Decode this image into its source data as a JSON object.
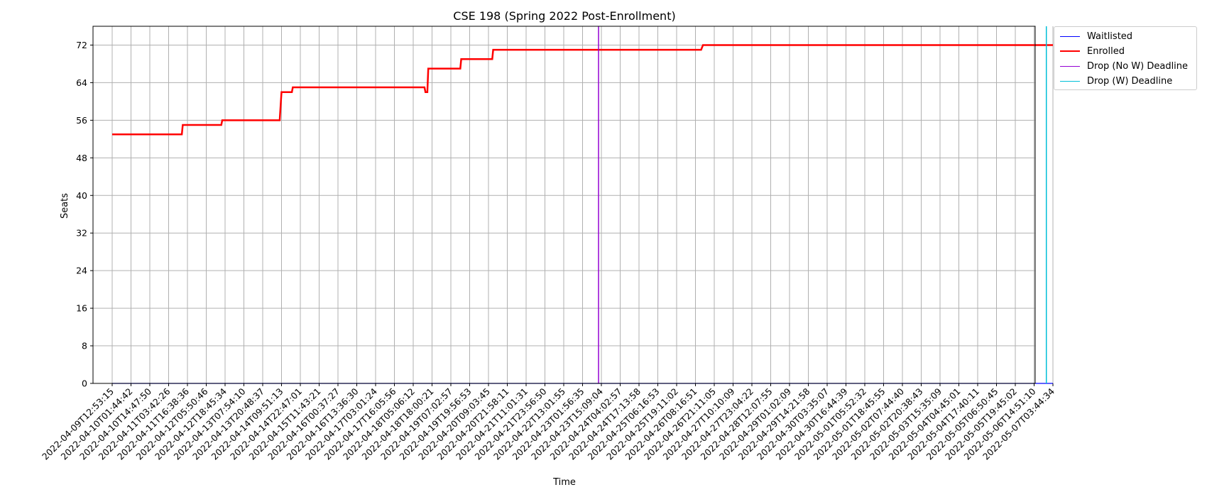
{
  "chart_data": {
    "type": "line",
    "title": "CSE 198 (Spring 2022 Post-Enrollment)",
    "xlabel": "Time",
    "ylabel": "Seats",
    "ylim": [
      0,
      76
    ],
    "yticks": [
      0,
      8,
      16,
      24,
      32,
      40,
      48,
      56,
      64,
      72
    ],
    "grid": true,
    "legend_position": "outside-top-right",
    "x_ticks": [
      "2022-04-09T12:53:15",
      "2022-04-10T01:44:42",
      "2022-04-10T14:47:50",
      "2022-04-11T03:42:26",
      "2022-04-11T16:38:36",
      "2022-04-12T05:50:46",
      "2022-04-12T18:45:34",
      "2022-04-13T07:54:10",
      "2022-04-13T20:48:37",
      "2022-04-14T09:51:13",
      "2022-04-14T22:47:01",
      "2022-04-15T11:43:21",
      "2022-04-16T00:37:27",
      "2022-04-16T13:36:30",
      "2022-04-17T03:01:24",
      "2022-04-17T16:05:56",
      "2022-04-18T05:06:12",
      "2022-04-18T18:00:21",
      "2022-04-19T07:02:57",
      "2022-04-19T19:56:53",
      "2022-04-20T09:03:45",
      "2022-04-20T21:58:11",
      "2022-04-21T11:01:31",
      "2022-04-21T23:56:50",
      "2022-04-22T13:01:55",
      "2022-04-23T01:56:35",
      "2022-04-23T15:09:04",
      "2022-04-24T04:02:57",
      "2022-04-24T17:13:58",
      "2022-04-25T06:16:53",
      "2022-04-25T19:11:02",
      "2022-04-26T08:16:51",
      "2022-04-26T21:11:05",
      "2022-04-27T10:10:09",
      "2022-04-27T23:04:22",
      "2022-04-28T12:07:55",
      "2022-04-29T01:02:09",
      "2022-04-29T14:21:58",
      "2022-04-30T03:35:07",
      "2022-04-30T16:44:39",
      "2022-05-01T05:52:32",
      "2022-05-01T18:45:55",
      "2022-05-02T07:44:40",
      "2022-05-02T20:38:43",
      "2022-05-03T15:35:09",
      "2022-05-04T04:45:01",
      "2022-05-04T17:40:11",
      "2022-05-05T06:50:45",
      "2022-05-05T19:45:02",
      "2022-05-06T14:51:10",
      "2022-05-07T03:44:34"
    ],
    "series": [
      {
        "name": "Waitlisted",
        "color": "#0000ff",
        "points": [
          [
            0,
            0
          ],
          [
            50,
            0
          ]
        ]
      },
      {
        "name": "Enrolled",
        "color": "#ff0000",
        "points": [
          [
            0,
            53
          ],
          [
            3.7,
            53
          ],
          [
            3.75,
            55
          ],
          [
            5.8,
            55
          ],
          [
            5.85,
            56
          ],
          [
            8.9,
            56
          ],
          [
            9.0,
            62
          ],
          [
            9.55,
            62
          ],
          [
            9.6,
            63
          ],
          [
            16.6,
            63
          ],
          [
            16.65,
            62
          ],
          [
            16.75,
            62
          ],
          [
            16.8,
            67
          ],
          [
            18.5,
            67
          ],
          [
            18.55,
            69
          ],
          [
            20.2,
            69
          ],
          [
            20.25,
            71
          ],
          [
            31.3,
            71
          ],
          [
            31.4,
            72
          ],
          [
            50,
            72
          ]
        ]
      }
    ],
    "vlines": [
      {
        "name": "Drop (No W) Deadline",
        "color": "#9400d3",
        "x": 25.85
      },
      {
        "name": "Drop (W) Deadline",
        "color": "#00bfd8",
        "x": 49.65
      }
    ]
  },
  "legend": [
    {
      "label": "Waitlisted",
      "color": "#0000ff"
    },
    {
      "label": "Enrolled",
      "color": "#ff0000"
    },
    {
      "label": "Drop (No W) Deadline",
      "color": "#9400d3"
    },
    {
      "label": "Drop (W) Deadline",
      "color": "#00bfd8"
    }
  ]
}
